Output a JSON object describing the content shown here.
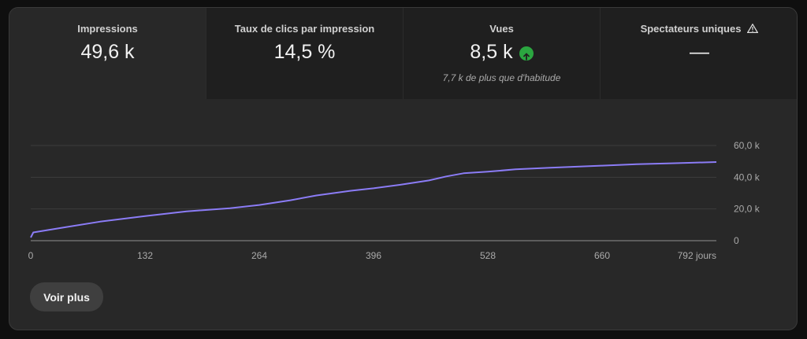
{
  "metrics": [
    {
      "title": "Impressions",
      "value": "49,6 k",
      "sub": ""
    },
    {
      "title": "Taux de clics par impression",
      "value": "14,5 %",
      "sub": ""
    },
    {
      "title": "Vues",
      "value": "8,5 k",
      "sub": "7,7 k de plus que d'habitude",
      "trend_icon": "arrow-up-circle-icon",
      "trend_color": "#2ba640"
    },
    {
      "title": "Spectateurs uniques",
      "value": "—",
      "sub": "",
      "info_icon": "warning-icon"
    }
  ],
  "colors": {
    "line": "#8b7cf6",
    "grid": "#3d3d3d",
    "axis": "#aaaaaa",
    "baseline": "#909090"
  },
  "chart_data": {
    "type": "line",
    "series": [
      {
        "x": [
          0,
          3,
          40,
          80,
          132,
          180,
          230,
          264,
          300,
          330,
          370,
          396,
          430,
          460,
          480,
          500,
          528,
          560,
          600,
          660,
          700,
          740,
          760,
          792
        ],
        "y": [
          2000,
          5200,
          8500,
          12000,
          15500,
          18500,
          20500,
          22500,
          25500,
          28500,
          31500,
          33000,
          35500,
          38000,
          40500,
          42500,
          43500,
          45000,
          46000,
          47300,
          48200,
          48800,
          49100,
          49600
        ]
      }
    ],
    "x_ticks": [
      "0",
      "132",
      "264",
      "396",
      "528",
      "660",
      "792 jours"
    ],
    "x_tick_values": [
      0,
      132,
      264,
      396,
      528,
      660,
      792
    ],
    "y_ticks": [
      "0",
      "20,0 k",
      "40,0 k",
      "60,0 k"
    ],
    "y_tick_values": [
      0,
      20000,
      40000,
      60000
    ],
    "xlim": [
      0,
      792
    ],
    "ylim": [
      0,
      60000
    ],
    "grid": true
  },
  "actions": {
    "see_more_label": "Voir plus"
  }
}
